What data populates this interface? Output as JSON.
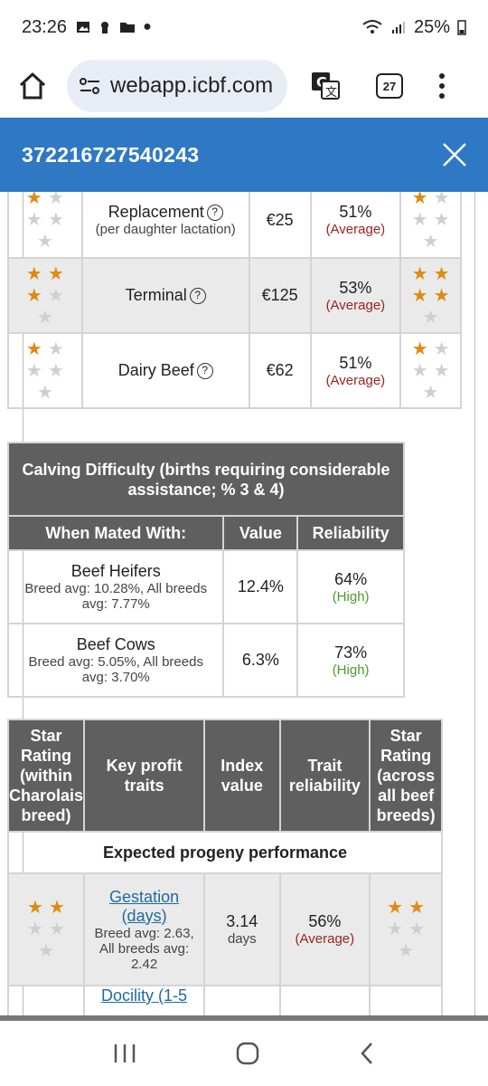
{
  "status": {
    "time": "23:26",
    "battery": "25%"
  },
  "browser": {
    "url": "webapp.icbf.com",
    "tab_count": "27"
  },
  "header": {
    "title": "372216727540243"
  },
  "traits": [
    {
      "name": "Replacement",
      "sub": "(per daughter lactation)",
      "value": "€25",
      "rel_pct": "51%",
      "rel_lbl": "(Average)",
      "left_stars": 1,
      "right_stars": 1
    },
    {
      "name": "Terminal",
      "sub": "",
      "value": "€125",
      "rel_pct": "53%",
      "rel_lbl": "(Average)",
      "left_stars": 3,
      "right_stars": 4
    },
    {
      "name": "Dairy Beef",
      "sub": "",
      "value": "€62",
      "rel_pct": "51%",
      "rel_lbl": "(Average)",
      "left_stars": 1,
      "right_stars": 1
    }
  ],
  "calving": {
    "caption": "Calving Difficulty (births requiring considerable assistance; % 3 & 4)",
    "headers": [
      "When Mated With:",
      "Value",
      "Reliability"
    ],
    "rows": [
      {
        "name": "Beef Heifers",
        "sub1": "Breed avg: 10.28%, All breeds",
        "sub2": "avg: 7.77%",
        "value": "12.4%",
        "rel_pct": "64%",
        "rel_lbl": "(High)"
      },
      {
        "name": "Beef Cows",
        "sub1": "Breed avg: 5.05%, All breeds",
        "sub2": "avg: 3.70%",
        "value": "6.3%",
        "rel_pct": "73%",
        "rel_lbl": "(High)"
      }
    ]
  },
  "profit": {
    "headers": [
      "Star Rating (within Charolais breed)",
      "Key profit traits",
      "Index value",
      "Trait reliability",
      "Star Rating (across all beef breeds)"
    ],
    "header_lines": {
      "h0": [
        "Star",
        "Rating",
        "(within",
        "Charolais",
        "breed)"
      ],
      "h1": [
        "Key profit",
        "traits"
      ],
      "h2": [
        "Index",
        "value"
      ],
      "h3": [
        "Trait",
        "reliability"
      ],
      "h4": [
        "Star",
        "Rating",
        "(across",
        "all beef",
        "breeds)"
      ]
    },
    "section": "Expected progeny performance",
    "rows": [
      {
        "link1": "Gestation",
        "link2": "(days)",
        "sub1": "Breed avg: 2.63,",
        "sub2": "All breeds avg:",
        "sub3": "2.42",
        "value1": "3.14",
        "value2": "days",
        "rel_pct": "56%",
        "rel_lbl": "(Average)",
        "left_stars": 2,
        "right_stars": 2
      },
      {
        "link1": "Docility (1-5",
        "link2": "",
        "sub1": "",
        "sub2": "",
        "sub3": "",
        "value1": "",
        "value2": "",
        "rel_pct": "",
        "rel_lbl": "",
        "left_stars": 0,
        "right_stars": 0
      }
    ]
  },
  "colors": {
    "brand": "#2f78c4",
    "header_gray": "#5f5f5f",
    "star": "#e08a12",
    "average": "#9b2222",
    "high": "#4a9a2a",
    "link": "#1e6ba0"
  }
}
